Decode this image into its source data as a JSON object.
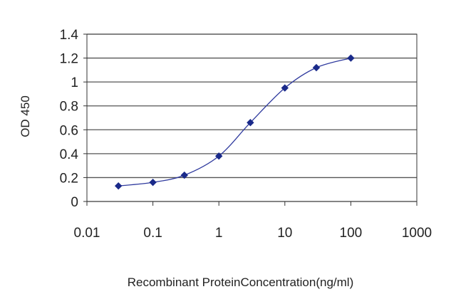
{
  "chart_data": {
    "type": "line",
    "xscale": "log",
    "x": [
      0.03,
      0.1,
      0.3,
      1,
      3,
      10,
      30,
      100
    ],
    "series": [
      {
        "values": [
          0.13,
          0.16,
          0.22,
          0.38,
          0.66,
          0.95,
          1.12,
          1.2
        ]
      }
    ],
    "xlim": [
      0.01,
      1000
    ],
    "ylim": [
      0,
      1.4
    ],
    "xticks": [
      0.01,
      0.1,
      1,
      10,
      100,
      1000
    ],
    "xtick_labels": [
      "0.01",
      "0.1",
      "1",
      "10",
      "100",
      "1000"
    ],
    "yticks": [
      0,
      0.2,
      0.4,
      0.6,
      0.8,
      1,
      1.2,
      1.4
    ],
    "ytick_labels": [
      "0",
      "0.2",
      "0.4",
      "0.6",
      "0.8",
      "1",
      "1.2",
      "1.4"
    ],
    "xlabel": "Recombinant ProteinConcentration(ng/ml)",
    "ylabel": "OD 450",
    "grid": "horizontal",
    "colors": {
      "line": "#2f3a9e",
      "marker": "#1a2a8a",
      "grid": "#555555",
      "frame": "#333333"
    }
  }
}
